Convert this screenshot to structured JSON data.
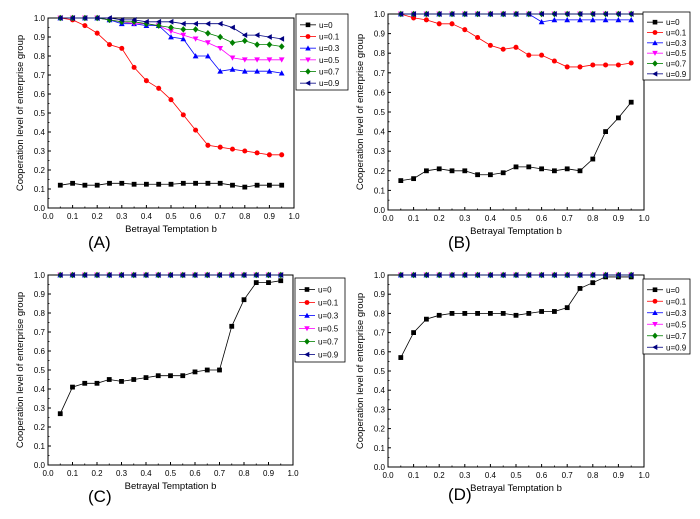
{
  "chart_data": [
    {
      "type": "line",
      "panel_label": "(A)",
      "xlabel": "Betrayal Temptation b",
      "ylabel": "Cooperation level of enterprise group",
      "xlim": [
        0.0,
        1.0
      ],
      "ylim": [
        0.0,
        1.0
      ],
      "xticks": [
        "0.0",
        "0.1",
        "0.2",
        "0.3",
        "0.4",
        "0.5",
        "0.6",
        "0.7",
        "0.8",
        "0.9",
        "1.0"
      ],
      "yticks": [
        "0.0",
        "0.1",
        "0.2",
        "0.3",
        "0.4",
        "0.5",
        "0.6",
        "0.7",
        "0.8",
        "0.9",
        "1.0"
      ],
      "x": [
        0.05,
        0.1,
        0.15,
        0.2,
        0.25,
        0.3,
        0.35,
        0.4,
        0.45,
        0.5,
        0.55,
        0.6,
        0.65,
        0.7,
        0.75,
        0.8,
        0.85,
        0.9,
        0.95
      ],
      "legend_position": "top-right",
      "series": [
        {
          "name": "u=0",
          "color": "#000000",
          "marker": "square",
          "values": [
            0.12,
            0.13,
            0.12,
            0.12,
            0.13,
            0.13,
            0.125,
            0.125,
            0.125,
            0.125,
            0.13,
            0.13,
            0.13,
            0.13,
            0.12,
            0.11,
            0.12,
            0.12,
            0.12
          ]
        },
        {
          "name": "u=0.1",
          "color": "#ff0000",
          "marker": "circle",
          "values": [
            1.0,
            0.99,
            0.96,
            0.92,
            0.86,
            0.84,
            0.74,
            0.67,
            0.63,
            0.57,
            0.49,
            0.41,
            0.33,
            0.32,
            0.31,
            0.3,
            0.29,
            0.28,
            0.28
          ]
        },
        {
          "name": "u=0.3",
          "color": "#0000ff",
          "marker": "triangle-up",
          "values": [
            1.0,
            1.0,
            1.0,
            1.0,
            0.99,
            0.97,
            0.97,
            0.96,
            0.96,
            0.9,
            0.89,
            0.8,
            0.8,
            0.72,
            0.73,
            0.72,
            0.72,
            0.72,
            0.71
          ]
        },
        {
          "name": "u=0.5",
          "color": "#ff00ff",
          "marker": "triangle-down",
          "values": [
            1.0,
            1.0,
            1.0,
            1.0,
            0.99,
            0.98,
            0.97,
            0.97,
            0.96,
            0.93,
            0.91,
            0.89,
            0.87,
            0.84,
            0.79,
            0.78,
            0.78,
            0.78,
            0.78
          ]
        },
        {
          "name": "u=0.7",
          "color": "#008000",
          "marker": "diamond",
          "values": [
            1.0,
            1.0,
            1.0,
            1.0,
            0.99,
            0.98,
            0.98,
            0.97,
            0.96,
            0.95,
            0.94,
            0.94,
            0.92,
            0.9,
            0.87,
            0.88,
            0.86,
            0.86,
            0.85
          ]
        },
        {
          "name": "u=0.9",
          "color": "#000080",
          "marker": "triangle-left",
          "values": [
            1.0,
            1.0,
            1.0,
            1.0,
            1.0,
            0.99,
            0.99,
            0.98,
            0.98,
            0.98,
            0.97,
            0.97,
            0.97,
            0.97,
            0.95,
            0.91,
            0.91,
            0.9,
            0.89
          ]
        }
      ]
    },
    {
      "type": "line",
      "panel_label": "(B)",
      "xlabel": "Betrayal Temptation b",
      "ylabel": "Cooperation level of enterprise group",
      "xlim": [
        0.0,
        1.0
      ],
      "ylim": [
        0.0,
        1.0
      ],
      "xticks": [
        "0.0",
        "0.1",
        "0.2",
        "0.3",
        "0.4",
        "0.5",
        "0.6",
        "0.7",
        "0.8",
        "0.9",
        "1.0"
      ],
      "yticks": [
        "0.0",
        "0.1",
        "0.2",
        "0.3",
        "0.4",
        "0.5",
        "0.6",
        "0.7",
        "0.8",
        "0.9",
        "1.0"
      ],
      "x": [
        0.05,
        0.1,
        0.15,
        0.2,
        0.25,
        0.3,
        0.35,
        0.4,
        0.45,
        0.5,
        0.55,
        0.6,
        0.65,
        0.7,
        0.75,
        0.8,
        0.85,
        0.9,
        0.95
      ],
      "legend_position": "top-right",
      "series": [
        {
          "name": "u=0",
          "color": "#000000",
          "marker": "square",
          "values": [
            0.15,
            0.16,
            0.2,
            0.21,
            0.2,
            0.2,
            0.18,
            0.18,
            0.19,
            0.22,
            0.22,
            0.21,
            0.2,
            0.21,
            0.2,
            0.26,
            0.4,
            0.47,
            0.55
          ]
        },
        {
          "name": "u=0.1",
          "color": "#ff0000",
          "marker": "circle",
          "values": [
            1.0,
            0.98,
            0.97,
            0.95,
            0.95,
            0.92,
            0.88,
            0.84,
            0.82,
            0.83,
            0.79,
            0.79,
            0.76,
            0.73,
            0.73,
            0.74,
            0.74,
            0.74,
            0.75
          ]
        },
        {
          "name": "u=0.3",
          "color": "#0000ff",
          "marker": "triangle-up",
          "values": [
            1.0,
            1.0,
            1.0,
            1.0,
            1.0,
            1.0,
            1.0,
            1.0,
            1.0,
            1.0,
            1.0,
            0.96,
            0.97,
            0.97,
            0.97,
            0.97,
            0.97,
            0.97,
            0.97
          ]
        },
        {
          "name": "u=0.5",
          "color": "#ff00ff",
          "marker": "triangle-down",
          "values": [
            1.0,
            1.0,
            1.0,
            1.0,
            1.0,
            1.0,
            1.0,
            1.0,
            1.0,
            1.0,
            1.0,
            1.0,
            1.0,
            1.0,
            1.0,
            1.0,
            1.0,
            1.0,
            1.0
          ]
        },
        {
          "name": "u=0.7",
          "color": "#008000",
          "marker": "diamond",
          "values": [
            1.0,
            1.0,
            1.0,
            1.0,
            1.0,
            1.0,
            1.0,
            1.0,
            1.0,
            1.0,
            1.0,
            1.0,
            1.0,
            1.0,
            1.0,
            1.0,
            1.0,
            1.0,
            1.0
          ]
        },
        {
          "name": "u=0.9",
          "color": "#000080",
          "marker": "triangle-left",
          "values": [
            1.0,
            1.0,
            1.0,
            1.0,
            1.0,
            1.0,
            1.0,
            1.0,
            1.0,
            1.0,
            1.0,
            1.0,
            1.0,
            1.0,
            1.0,
            1.0,
            1.0,
            1.0,
            1.0
          ]
        }
      ]
    },
    {
      "type": "line",
      "panel_label": "(C)",
      "xlabel": "Betrayal Temptation b",
      "ylabel": "Cooperation level of enterprise group",
      "xlim": [
        0.0,
        1.0
      ],
      "ylim": [
        0.0,
        1.0
      ],
      "xticks": [
        "0.0",
        "0.1",
        "0.2",
        "0.3",
        "0.4",
        "0.5",
        "0.6",
        "0.7",
        "0.8",
        "0.9",
        "1.0"
      ],
      "yticks": [
        "0.0",
        "0.1",
        "0.2",
        "0.3",
        "0.4",
        "0.5",
        "0.6",
        "0.7",
        "0.8",
        "0.9",
        "1.0"
      ],
      "x": [
        0.05,
        0.1,
        0.15,
        0.2,
        0.25,
        0.3,
        0.35,
        0.4,
        0.45,
        0.5,
        0.55,
        0.6,
        0.65,
        0.7,
        0.75,
        0.8,
        0.85,
        0.9,
        0.95
      ],
      "legend_position": "right",
      "series": [
        {
          "name": "u=0",
          "color": "#000000",
          "marker": "square",
          "values": [
            0.27,
            0.41,
            0.43,
            0.43,
            0.45,
            0.44,
            0.45,
            0.46,
            0.47,
            0.47,
            0.47,
            0.49,
            0.5,
            0.5,
            0.73,
            0.87,
            0.96,
            0.96,
            0.97
          ]
        },
        {
          "name": "u=0.1",
          "color": "#ff0000",
          "marker": "circle",
          "values": [
            1.0,
            1.0,
            1.0,
            1.0,
            1.0,
            1.0,
            1.0,
            1.0,
            1.0,
            1.0,
            1.0,
            1.0,
            1.0,
            1.0,
            1.0,
            1.0,
            1.0,
            1.0,
            1.0
          ]
        },
        {
          "name": "u=0.3",
          "color": "#0000ff",
          "marker": "triangle-up",
          "values": [
            1.0,
            1.0,
            1.0,
            1.0,
            1.0,
            1.0,
            1.0,
            1.0,
            1.0,
            1.0,
            1.0,
            1.0,
            1.0,
            1.0,
            1.0,
            1.0,
            1.0,
            1.0,
            1.0
          ]
        },
        {
          "name": "u=0.5",
          "color": "#ff00ff",
          "marker": "triangle-down",
          "values": [
            1.0,
            1.0,
            1.0,
            1.0,
            1.0,
            1.0,
            1.0,
            1.0,
            1.0,
            1.0,
            1.0,
            1.0,
            1.0,
            1.0,
            1.0,
            1.0,
            1.0,
            1.0,
            1.0
          ]
        },
        {
          "name": "u=0.7",
          "color": "#008000",
          "marker": "diamond",
          "values": [
            1.0,
            1.0,
            1.0,
            1.0,
            1.0,
            1.0,
            1.0,
            1.0,
            1.0,
            1.0,
            1.0,
            1.0,
            1.0,
            1.0,
            1.0,
            1.0,
            1.0,
            1.0,
            1.0
          ]
        },
        {
          "name": "u=0.9",
          "color": "#000080",
          "marker": "triangle-left",
          "values": [
            1.0,
            1.0,
            1.0,
            1.0,
            1.0,
            1.0,
            1.0,
            1.0,
            1.0,
            1.0,
            1.0,
            1.0,
            1.0,
            1.0,
            1.0,
            1.0,
            1.0,
            1.0,
            1.0
          ]
        }
      ]
    },
    {
      "type": "line",
      "panel_label": "(D)",
      "xlabel": "Betrayal Temptation b",
      "ylabel": "Cooperation level of enterprise group",
      "xlim": [
        0.0,
        1.0
      ],
      "ylim": [
        0.0,
        1.0
      ],
      "xticks": [
        "0.0",
        "0.1",
        "0.2",
        "0.3",
        "0.4",
        "0.5",
        "0.6",
        "0.7",
        "0.8",
        "0.9",
        "1.0"
      ],
      "yticks": [
        "0.0",
        "0.1",
        "0.2",
        "0.3",
        "0.4",
        "0.5",
        "0.6",
        "0.7",
        "0.8",
        "0.9",
        "1.0"
      ],
      "x": [
        0.05,
        0.1,
        0.15,
        0.2,
        0.25,
        0.3,
        0.35,
        0.4,
        0.45,
        0.5,
        0.55,
        0.6,
        0.65,
        0.7,
        0.75,
        0.8,
        0.85,
        0.9,
        0.95
      ],
      "legend_position": "right",
      "series": [
        {
          "name": "u=0",
          "color": "#000000",
          "marker": "square",
          "values": [
            0.57,
            0.7,
            0.77,
            0.79,
            0.8,
            0.8,
            0.8,
            0.8,
            0.8,
            0.79,
            0.8,
            0.81,
            0.81,
            0.83,
            0.93,
            0.96,
            0.99,
            0.99,
            0.99
          ]
        },
        {
          "name": "u=0.1",
          "color": "#ff0000",
          "marker": "circle",
          "values": [
            1.0,
            1.0,
            1.0,
            1.0,
            1.0,
            1.0,
            1.0,
            1.0,
            1.0,
            1.0,
            1.0,
            1.0,
            1.0,
            1.0,
            1.0,
            1.0,
            1.0,
            1.0,
            1.0
          ]
        },
        {
          "name": "u=0.3",
          "color": "#0000ff",
          "marker": "triangle-up",
          "values": [
            1.0,
            1.0,
            1.0,
            1.0,
            1.0,
            1.0,
            1.0,
            1.0,
            1.0,
            1.0,
            1.0,
            1.0,
            1.0,
            1.0,
            1.0,
            1.0,
            1.0,
            1.0,
            1.0
          ]
        },
        {
          "name": "u=0.5",
          "color": "#ff00ff",
          "marker": "triangle-down",
          "values": [
            1.0,
            1.0,
            1.0,
            1.0,
            1.0,
            1.0,
            1.0,
            1.0,
            1.0,
            1.0,
            1.0,
            1.0,
            1.0,
            1.0,
            1.0,
            1.0,
            1.0,
            1.0,
            1.0
          ]
        },
        {
          "name": "u=0.7",
          "color": "#008000",
          "marker": "diamond",
          "values": [
            1.0,
            1.0,
            1.0,
            1.0,
            1.0,
            1.0,
            1.0,
            1.0,
            1.0,
            1.0,
            1.0,
            1.0,
            1.0,
            1.0,
            1.0,
            1.0,
            1.0,
            1.0,
            1.0
          ]
        },
        {
          "name": "u=0.9",
          "color": "#000080",
          "marker": "triangle-left",
          "values": [
            1.0,
            1.0,
            1.0,
            1.0,
            1.0,
            1.0,
            1.0,
            1.0,
            1.0,
            1.0,
            1.0,
            1.0,
            1.0,
            1.0,
            1.0,
            1.0,
            1.0,
            1.0,
            1.0
          ]
        }
      ]
    }
  ]
}
